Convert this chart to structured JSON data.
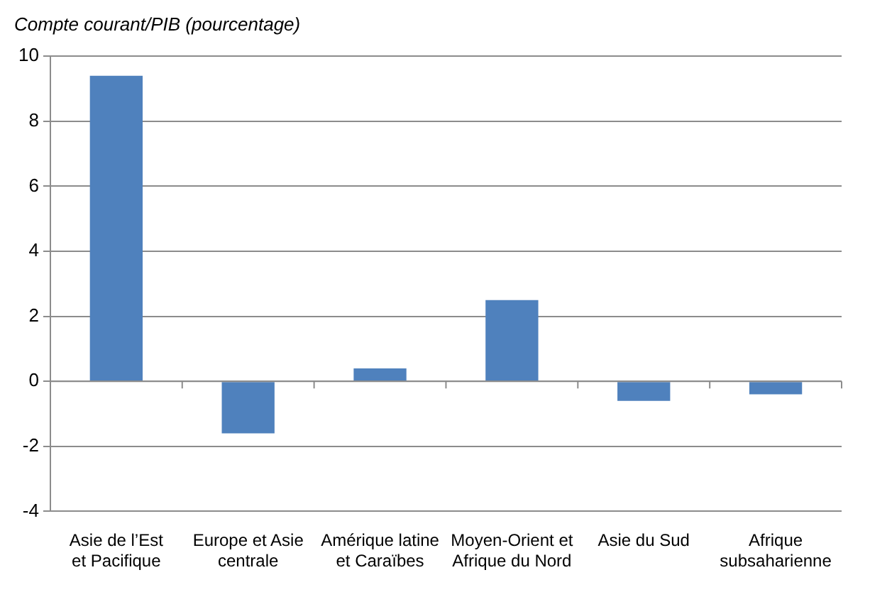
{
  "chart_data": {
    "type": "bar",
    "title": "Compte courant/PIB (pourcentage)",
    "categories": [
      "Asie de l’Est et Pacifique",
      "Europe et Asie centrale",
      "Amérique latine et Caraïbes",
      "Moyen-Orient et Afrique du Nord",
      "Asie du Sud",
      "Afrique subsaharienne"
    ],
    "values": [
      9.4,
      -1.6,
      0.4,
      2.5,
      -0.6,
      -0.4
    ],
    "color": "#4f81bd",
    "ylim": [
      -4,
      10
    ],
    "yticks": [
      -4,
      -2,
      0,
      2,
      4,
      6,
      8,
      10
    ],
    "grid": "y"
  }
}
